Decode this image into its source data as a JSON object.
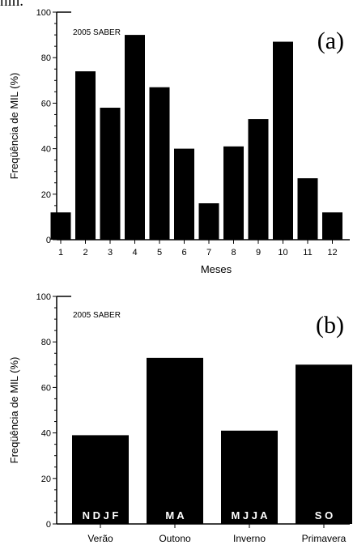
{
  "top_fragment": "nin.",
  "charts": [
    {
      "type": "bar",
      "panel_letter": "(a)",
      "inset_text": "2005 SABER",
      "ylabel": "Freqüência de MIL (%)",
      "xlabel": "Meses",
      "ylim": [
        0,
        100
      ],
      "yticks": [
        "0",
        "20",
        "40",
        "60",
        "80",
        "100"
      ],
      "categories": [
        "1",
        "2",
        "3",
        "4",
        "5",
        "6",
        "7",
        "8",
        "9",
        "10",
        "11",
        "12"
      ],
      "values": [
        12,
        74,
        58,
        90,
        67,
        40,
        16,
        41,
        53,
        87,
        27,
        12
      ],
      "bar_color": "#000000",
      "grid": false
    },
    {
      "type": "bar",
      "panel_letter": "(b)",
      "inset_text": "2005 SABER",
      "ylabel": "Freqüência de MIL (%)",
      "xlabel": "",
      "ylim": [
        0,
        100
      ],
      "yticks": [
        "0",
        "20",
        "40",
        "60",
        "80",
        "100"
      ],
      "categories": [
        "Verão",
        "Outono",
        "Inverno",
        "Primavera"
      ],
      "values": [
        39,
        73,
        41,
        70
      ],
      "bar_labels": [
        "N D J F",
        "M A",
        "M J J A",
        "S O"
      ],
      "bar_color": "#000000",
      "bar_label_color": "#ffffff",
      "grid": false
    }
  ]
}
